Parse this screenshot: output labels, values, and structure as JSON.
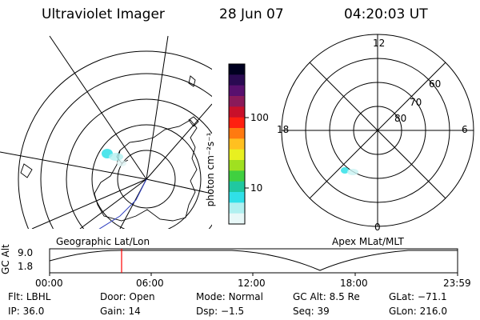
{
  "header": {
    "instrument": "Ultraviolet Imager",
    "date": "28 Jun 07",
    "time": "04:20:03 UT"
  },
  "colorbar": {
    "unit_label": "photon cm⁻²s⁻¹",
    "ticks": [
      "100",
      "10"
    ],
    "colors": [
      "#000020",
      "#2a0a52",
      "#58106e",
      "#8a1a5a",
      "#c8102a",
      "#ff2010",
      "#ff7a10",
      "#ffc020",
      "#e8f020",
      "#a0e020",
      "#40d040",
      "#20c8a0",
      "#30e0e8",
      "#b0f0f0",
      "#e8f8f8"
    ]
  },
  "left_panel": {
    "label": "Geographic Lat/Lon"
  },
  "right_panel": {
    "label": "Apex MLat/MLT",
    "mlt_labels": {
      "top": "12",
      "left": "18",
      "right": "6",
      "bottom": "0"
    },
    "lat_labels": [
      "60",
      "70",
      "80"
    ]
  },
  "altitude_plot": {
    "ylabel": "GC Alt",
    "yticks": [
      "9.0",
      "1.8"
    ],
    "xticks": [
      "00:00",
      "06:00",
      "12:00",
      "18:00",
      "23:59"
    ],
    "cursor_color": "#ff0000"
  },
  "info": {
    "row1": [
      {
        "label": "Flt:",
        "value": "LBHL"
      },
      {
        "label": "Door:",
        "value": "Open"
      },
      {
        "label": "Mode:",
        "value": "Normal"
      },
      {
        "label": "GC Alt:",
        "value": "8.5 Re"
      },
      {
        "label": "GLat:",
        "value": "−71.1"
      }
    ],
    "row2": [
      {
        "label": "IP:",
        "value": "36.0"
      },
      {
        "label": "Gain:",
        "value": "14"
      },
      {
        "label": "Dsp:",
        "value": "−1.5"
      },
      {
        "label": "Seq:",
        "value": "39"
      },
      {
        "label": "GLon:",
        "value": "216.0"
      }
    ]
  }
}
